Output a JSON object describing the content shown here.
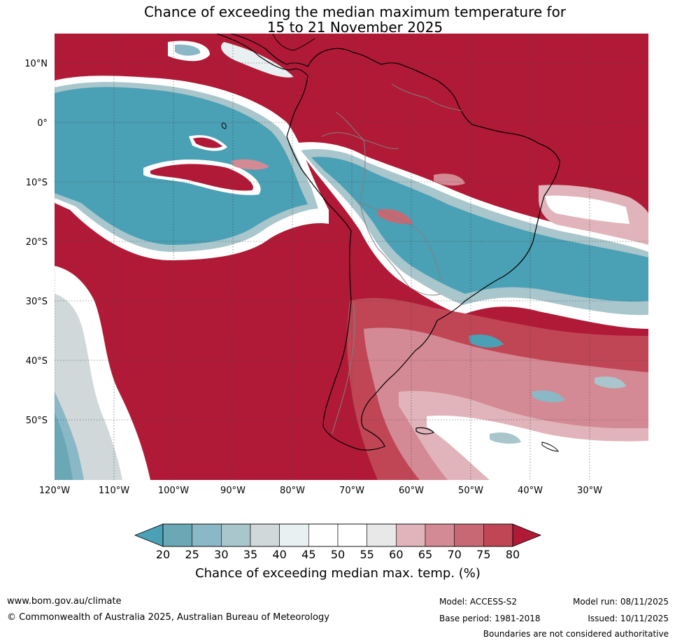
{
  "title": {
    "line1": "Chance of exceeding the median maximum temperature for",
    "line2": "15 to 21 November 2025"
  },
  "map": {
    "latitude_labels": [
      "10°N",
      "0°",
      "10°S",
      "20°S",
      "30°S",
      "40°S",
      "50°S"
    ],
    "longitude_labels": [
      "120°W",
      "110°W",
      "100°W",
      "90°W",
      "80°W",
      "70°W",
      "60°W",
      "50°W",
      "40°W",
      "30°W"
    ],
    "colors": {
      "high": "#b01a36",
      "low": "#4aa0b4",
      "neutral": "#ffffff",
      "coast": "#000000",
      "border": "#808080"
    }
  },
  "colorbar": {
    "ticks": [
      "20",
      "25",
      "30",
      "35",
      "40",
      "45",
      "50",
      "55",
      "60",
      "65",
      "70",
      "75",
      "80"
    ],
    "colors": [
      "#6aa8b6",
      "#8ab8c6",
      "#a8c6cc",
      "#d0d8da",
      "#e8f0f2",
      "#ffffff",
      "#ffffff",
      "#e8e8e8",
      "#e0b4ba",
      "#d48a94",
      "#c76874",
      "#c04656"
    ],
    "under_color": "#4aa0b4",
    "over_color": "#b01a36",
    "title": "Chance of exceeding median max. temp. (%)"
  },
  "footer": {
    "website": "www.bom.gov.au/climate",
    "copyright": "© Commonwealth of Australia 2025, Australian Bureau of Meteorology",
    "model": "Model: ACCESS-S2",
    "base_period": "Base period: 1981-2018",
    "model_run": "Model run: 08/11/2025",
    "issued": "Issued: 10/11/2025",
    "disclaimer": "Boundaries are not considered authoritative"
  }
}
